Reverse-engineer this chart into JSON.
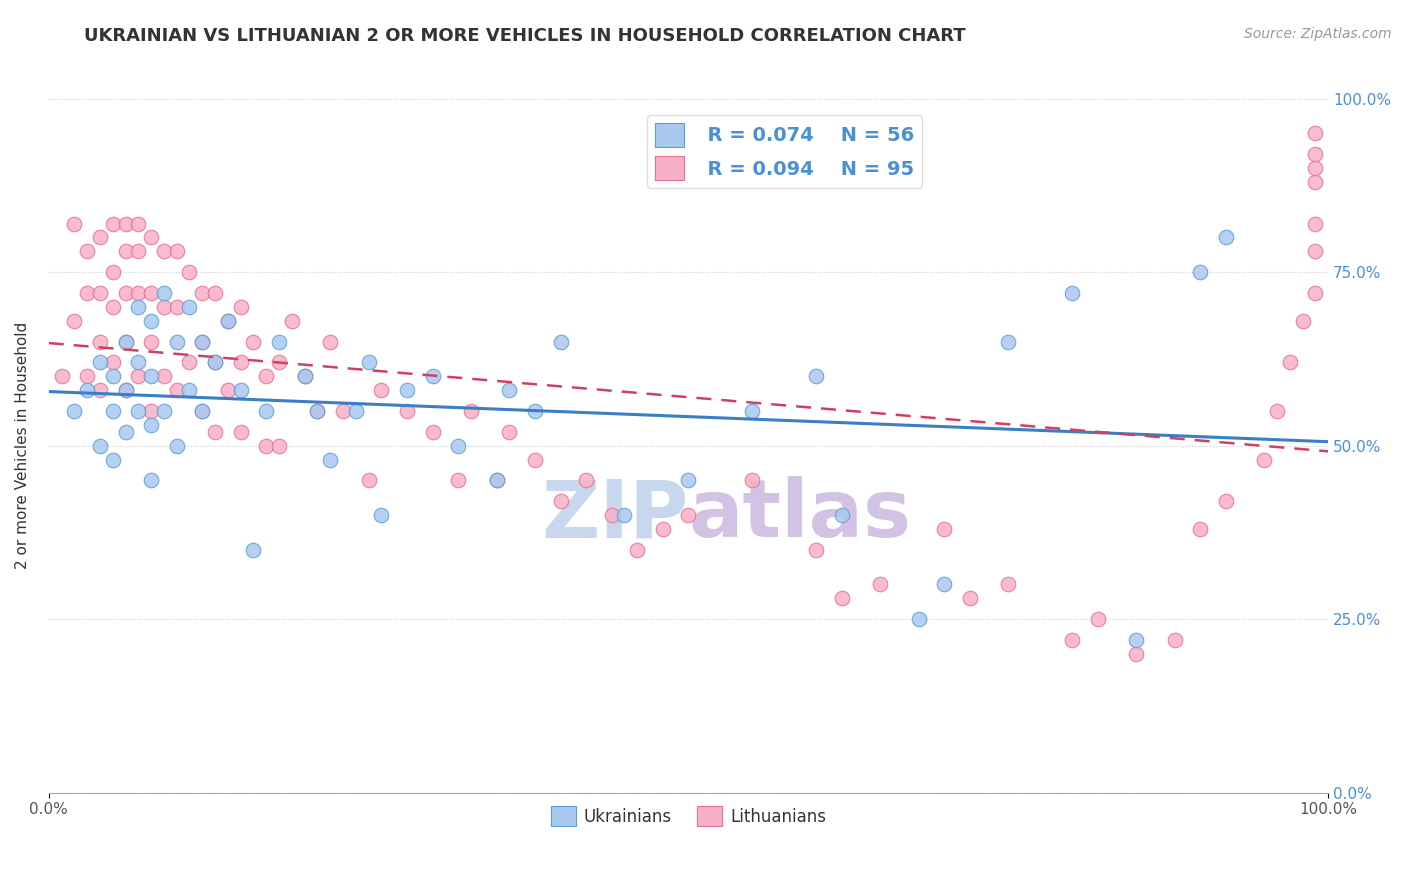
{
  "title": "UKRAINIAN VS LITHUANIAN 2 OR MORE VEHICLES IN HOUSEHOLD CORRELATION CHART",
  "source": "Source: ZipAtlas.com",
  "ylabel": "2 or more Vehicles in Household",
  "xlim": [
    0.0,
    1.0
  ],
  "ylim": [
    0.0,
    1.0
  ],
  "xtick_labels": [
    "0.0%",
    "100.0%"
  ],
  "ytick_labels": [
    "0.0%",
    "25.0%",
    "50.0%",
    "75.0%",
    "100.0%"
  ],
  "ytick_positions": [
    0.0,
    0.25,
    0.5,
    0.75,
    1.0
  ],
  "legend_r_blue": "R = 0.074",
  "legend_n_blue": "N = 56",
  "legend_r_pink": "R = 0.094",
  "legend_n_pink": "N = 95",
  "blue_color": "#a8c8f0",
  "pink_color": "#f8b0c8",
  "blue_edge": "#5a9fd4",
  "pink_edge": "#e8708a",
  "trend_blue_color": "#3a7fc4",
  "trend_pink_color": "#d04060",
  "watermark_zip_color": "#b0c8e8",
  "watermark_atlas_color": "#c0a8d8",
  "background_color": "#ffffff",
  "title_fontsize": 13,
  "source_fontsize": 10,
  "ylabel_fontsize": 11,
  "marker_size": 110,
  "blue_scatter_x": [
    0.02,
    0.03,
    0.04,
    0.04,
    0.05,
    0.05,
    0.05,
    0.06,
    0.06,
    0.06,
    0.07,
    0.07,
    0.07,
    0.08,
    0.08,
    0.08,
    0.08,
    0.09,
    0.09,
    0.1,
    0.1,
    0.11,
    0.11,
    0.12,
    0.12,
    0.13,
    0.14,
    0.15,
    0.16,
    0.17,
    0.18,
    0.2,
    0.21,
    0.22,
    0.24,
    0.25,
    0.26,
    0.28,
    0.3,
    0.32,
    0.35,
    0.36,
    0.38,
    0.4,
    0.45,
    0.5,
    0.55,
    0.6,
    0.62,
    0.68,
    0.7,
    0.75,
    0.8,
    0.85,
    0.9,
    0.92
  ],
  "blue_scatter_y": [
    0.55,
    0.58,
    0.5,
    0.62,
    0.6,
    0.55,
    0.48,
    0.65,
    0.58,
    0.52,
    0.7,
    0.62,
    0.55,
    0.68,
    0.6,
    0.53,
    0.45,
    0.72,
    0.55,
    0.65,
    0.5,
    0.7,
    0.58,
    0.65,
    0.55,
    0.62,
    0.68,
    0.58,
    0.35,
    0.55,
    0.65,
    0.6,
    0.55,
    0.48,
    0.55,
    0.62,
    0.4,
    0.58,
    0.6,
    0.5,
    0.45,
    0.58,
    0.55,
    0.65,
    0.4,
    0.45,
    0.55,
    0.6,
    0.4,
    0.25,
    0.3,
    0.65,
    0.72,
    0.22,
    0.75,
    0.8
  ],
  "pink_scatter_x": [
    0.01,
    0.02,
    0.02,
    0.03,
    0.03,
    0.03,
    0.04,
    0.04,
    0.04,
    0.04,
    0.05,
    0.05,
    0.05,
    0.05,
    0.06,
    0.06,
    0.06,
    0.06,
    0.06,
    0.07,
    0.07,
    0.07,
    0.07,
    0.08,
    0.08,
    0.08,
    0.08,
    0.09,
    0.09,
    0.09,
    0.1,
    0.1,
    0.1,
    0.11,
    0.11,
    0.12,
    0.12,
    0.12,
    0.13,
    0.13,
    0.13,
    0.14,
    0.14,
    0.15,
    0.15,
    0.15,
    0.16,
    0.17,
    0.17,
    0.18,
    0.18,
    0.19,
    0.2,
    0.21,
    0.22,
    0.23,
    0.25,
    0.26,
    0.28,
    0.3,
    0.32,
    0.33,
    0.35,
    0.36,
    0.38,
    0.4,
    0.42,
    0.44,
    0.46,
    0.48,
    0.5,
    0.55,
    0.6,
    0.62,
    0.65,
    0.7,
    0.72,
    0.75,
    0.8,
    0.82,
    0.85,
    0.88,
    0.9,
    0.92,
    0.95,
    0.96,
    0.97,
    0.98,
    0.99,
    0.99,
    0.99,
    0.99,
    0.99,
    0.99,
    0.99
  ],
  "pink_scatter_y": [
    0.6,
    0.82,
    0.68,
    0.78,
    0.72,
    0.6,
    0.8,
    0.72,
    0.65,
    0.58,
    0.82,
    0.75,
    0.7,
    0.62,
    0.82,
    0.78,
    0.72,
    0.65,
    0.58,
    0.82,
    0.78,
    0.72,
    0.6,
    0.8,
    0.72,
    0.65,
    0.55,
    0.78,
    0.7,
    0.6,
    0.78,
    0.7,
    0.58,
    0.75,
    0.62,
    0.72,
    0.65,
    0.55,
    0.72,
    0.62,
    0.52,
    0.68,
    0.58,
    0.7,
    0.62,
    0.52,
    0.65,
    0.6,
    0.5,
    0.62,
    0.5,
    0.68,
    0.6,
    0.55,
    0.65,
    0.55,
    0.45,
    0.58,
    0.55,
    0.52,
    0.45,
    0.55,
    0.45,
    0.52,
    0.48,
    0.42,
    0.45,
    0.4,
    0.35,
    0.38,
    0.4,
    0.45,
    0.35,
    0.28,
    0.3,
    0.38,
    0.28,
    0.3,
    0.22,
    0.25,
    0.2,
    0.22,
    0.38,
    0.42,
    0.48,
    0.55,
    0.62,
    0.68,
    0.72,
    0.78,
    0.82,
    0.88,
    0.9,
    0.92,
    0.95
  ]
}
